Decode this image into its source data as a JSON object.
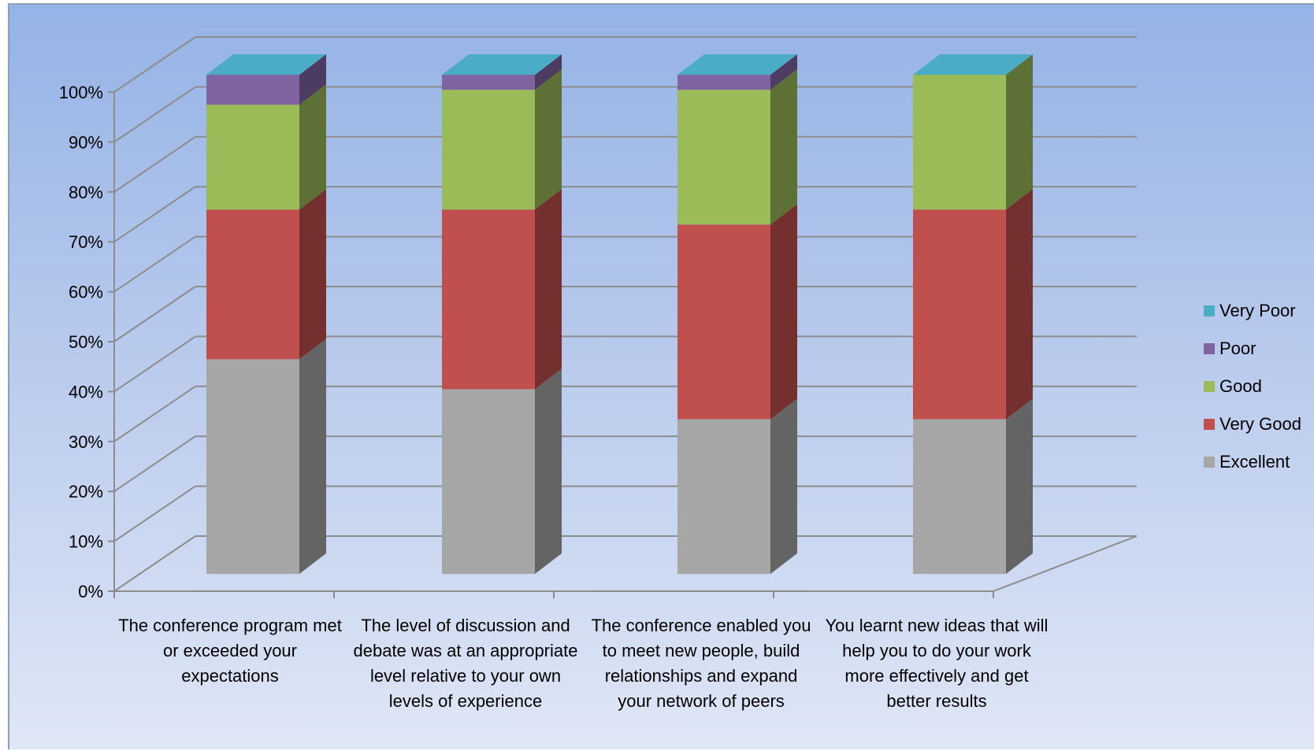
{
  "chart_data": {
    "type": "bar",
    "stacked": true,
    "three_d": true,
    "title": "",
    "xlabel": "",
    "ylabel": "",
    "ylim": [
      0,
      100
    ],
    "y_ticks": [
      "0%",
      "10%",
      "20%",
      "30%",
      "40%",
      "50%",
      "60%",
      "70%",
      "80%",
      "90%",
      "100%"
    ],
    "categories": [
      "The conference program met or exceeded your expectations",
      "The level of discussion and debate was at an appropriate level relative to your own levels of experience",
      "The conference enabled you to meet new people, build relationships and expand your network of peers",
      "You learnt new ideas that will help you to do your work more effectively and get better results"
    ],
    "series": [
      {
        "name": "Excellent",
        "values": [
          43,
          37,
          31,
          31
        ],
        "color": "#a6a6a6"
      },
      {
        "name": "Very Good",
        "values": [
          30,
          36,
          39,
          42
        ],
        "color": "#c0504d"
      },
      {
        "name": "Good",
        "values": [
          21,
          24,
          27,
          27
        ],
        "color": "#9bbb59"
      },
      {
        "name": "Poor",
        "values": [
          6,
          3,
          3,
          0
        ],
        "color": "#8064a2"
      },
      {
        "name": "Very Poor",
        "values": [
          0,
          0,
          0,
          0
        ],
        "color": "#4bacc6"
      }
    ],
    "legend_order": [
      "Very Poor",
      "Poor",
      "Good",
      "Very Good",
      "Excellent"
    ],
    "legend_position": "right",
    "grid": true
  }
}
